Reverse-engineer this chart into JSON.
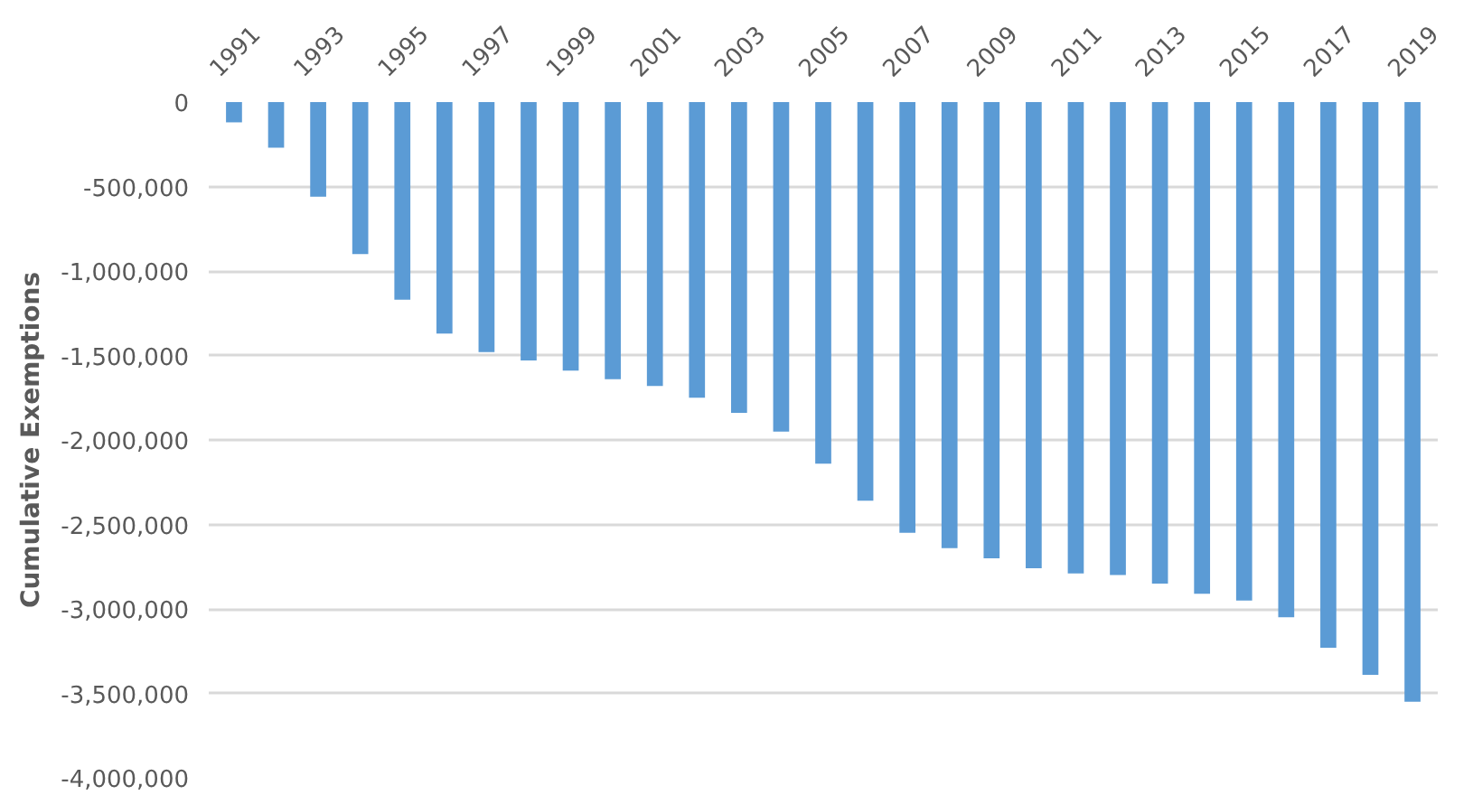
{
  "chart_data": {
    "type": "bar",
    "ylabel": "Cumulative Exemptions",
    "categories": [
      "1991",
      null,
      "1993",
      null,
      "1995",
      null,
      "1997",
      null,
      "1999",
      null,
      "2001",
      null,
      "2003",
      null,
      "2005",
      null,
      "2007",
      null,
      "2009",
      null,
      "2011",
      null,
      "2013",
      null,
      "2015",
      null,
      "2017",
      null,
      "2019"
    ],
    "values": [
      -120000,
      -270000,
      -560000,
      -900000,
      -1170000,
      -1370000,
      -1480000,
      -1530000,
      -1590000,
      -1640000,
      -1680000,
      -1750000,
      -1840000,
      -1950000,
      -2140000,
      -2360000,
      -2550000,
      -2640000,
      -2700000,
      -2760000,
      -2790000,
      -2800000,
      -2850000,
      -2910000,
      -2950000,
      -3050000,
      -3230000,
      -3390000,
      -3550000
    ],
    "color": "#5b9bd5",
    "ylim": [
      -4000000,
      0
    ],
    "yticks": [
      {
        "value": -4000000,
        "label": "-4,000,000"
      },
      {
        "value": -3500000,
        "label": "-3,500,000"
      },
      {
        "value": -3000000,
        "label": "-3,000,000"
      },
      {
        "value": -2500000,
        "label": "-2,500,000"
      },
      {
        "value": -2000000,
        "label": "-2,000,000"
      },
      {
        "value": -1500000,
        "label": "-1,500,000"
      },
      {
        "value": -1000000,
        "label": "-1,000,000"
      },
      {
        "value": -500000,
        "label": "-500,000"
      },
      0
    ],
    "grid": "y"
  }
}
